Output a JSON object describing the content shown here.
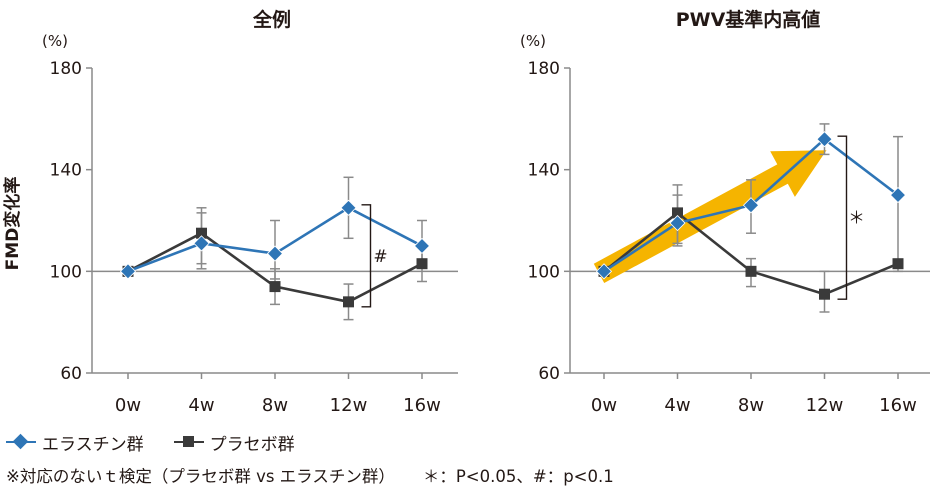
{
  "chart_data": [
    {
      "type": "line",
      "title": "全例",
      "unit": "(%)",
      "ylabel": "FMD変化率",
      "categories": [
        "0w",
        "4w",
        "8w",
        "12w",
        "16w"
      ],
      "ylim": [
        60,
        180
      ],
      "yticks": [
        60,
        100,
        140,
        180
      ],
      "reference_line": 100,
      "series": [
        {
          "name": "エラスチン群",
          "marker": "diamond",
          "color": "#2e75b6",
          "values": [
            100,
            111,
            107,
            125,
            110
          ],
          "err_low": [
            100,
            103,
            97,
            113,
            103
          ],
          "err_high": [
            100,
            123,
            120,
            137,
            120
          ]
        },
        {
          "name": "プラセボ群",
          "marker": "square",
          "color": "#3a3a3a",
          "values": [
            100,
            115,
            94,
            88,
            103
          ],
          "err_low": [
            100,
            101,
            87,
            81,
            96
          ],
          "err_high": [
            100,
            125,
            101,
            95,
            110
          ]
        }
      ],
      "annotation": {
        "label": "#",
        "x": "12w"
      }
    },
    {
      "type": "line",
      "title": "PWV基準内高値",
      "unit": "(%)",
      "ylabel": "",
      "categories": [
        "0w",
        "4w",
        "8w",
        "12w",
        "16w"
      ],
      "ylim": [
        60,
        180
      ],
      "yticks": [
        60,
        100,
        140,
        180
      ],
      "reference_line": 100,
      "series": [
        {
          "name": "エラスチン群",
          "marker": "diamond",
          "color": "#2e75b6",
          "values": [
            100,
            119,
            126,
            152,
            130
          ],
          "err_low": [
            100,
            110,
            115,
            146,
            100
          ],
          "err_high": [
            100,
            130,
            136,
            158,
            153
          ]
        },
        {
          "name": "プラセボ群",
          "marker": "square",
          "color": "#3a3a3a",
          "values": [
            100,
            123,
            100,
            91,
            103
          ],
          "err_low": [
            100,
            111,
            94,
            84,
            103
          ],
          "err_high": [
            100,
            134,
            105,
            100,
            103
          ]
        }
      ],
      "annotation": {
        "label": "＊",
        "x": "12w"
      },
      "trend_arrow": {
        "from": [
          "0w",
          100
        ],
        "to": [
          "12w",
          150
        ],
        "color": "#f5b400"
      }
    }
  ],
  "legend": [
    {
      "name": "エラスチン群",
      "marker": "diamond",
      "color": "#2e75b6"
    },
    {
      "name": "プラセボ群",
      "marker": "square",
      "color": "#3a3a3a"
    }
  ],
  "footnote": {
    "test": "※対応のないｔ検定（プラセボ群 vs エラスチン群）",
    "significance": "＊：P<0.05、#：p<0.1"
  }
}
